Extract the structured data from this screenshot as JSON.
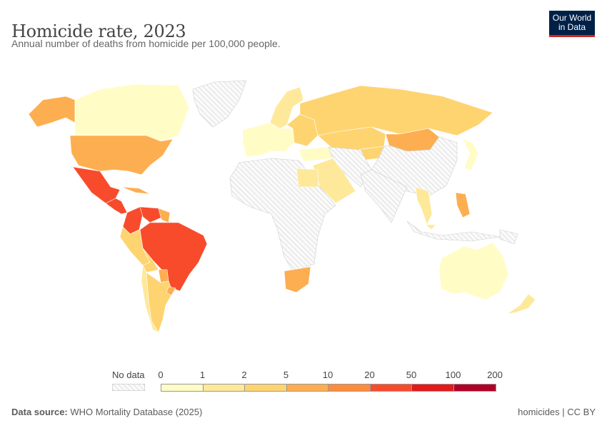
{
  "header": {
    "title": "Homicide rate, 2023",
    "subtitle": "Annual number of deaths from homicide per 100,000 people.",
    "logo_line1": "Our World",
    "logo_line2": "in Data"
  },
  "legend": {
    "no_data_label": "No data",
    "ticks": [
      "0",
      "1",
      "2",
      "5",
      "10",
      "20",
      "50",
      "100",
      "200"
    ],
    "colors": [
      "#fffcc6",
      "#fee99a",
      "#fed471",
      "#fdae50",
      "#fc8c3b",
      "#f84b2c",
      "#e31a1c",
      "#b10026"
    ],
    "no_data_color": "#e6e6e6"
  },
  "map": {
    "region_bins": {
      "alaska": 3,
      "canada": 0,
      "usa": 3,
      "mexico": 5,
      "central-america": 5,
      "caribbean": 3,
      "colombia": 5,
      "venezuela": 5,
      "guyana": 3,
      "brazil": 5,
      "peru": 2,
      "bolivia": 2,
      "paraguay": 3,
      "chile": 1,
      "argentina": 2,
      "uruguay": 3,
      "scandinavia": 1,
      "western-europe": 0,
      "eastern-europe": 2,
      "turkey": 0,
      "russia": 2,
      "kazakhstan": 2,
      "central-asia": 2,
      "mongolia": 3,
      "japan": 0,
      "egypt": 1,
      "saudi": 1,
      "south-africa": 3,
      "thailand": 1,
      "philippines": 3,
      "malaysia": 1,
      "australia": 0,
      "new-zealand": 1
    },
    "no_data_regions": [
      "greenland",
      "africa",
      "middle-east-nd",
      "china",
      "india",
      "indonesia",
      "png"
    ]
  },
  "footer": {
    "source_label": "Data source:",
    "source_value": "WHO Mortality Database (2025)",
    "license": "homicides | CC BY"
  }
}
